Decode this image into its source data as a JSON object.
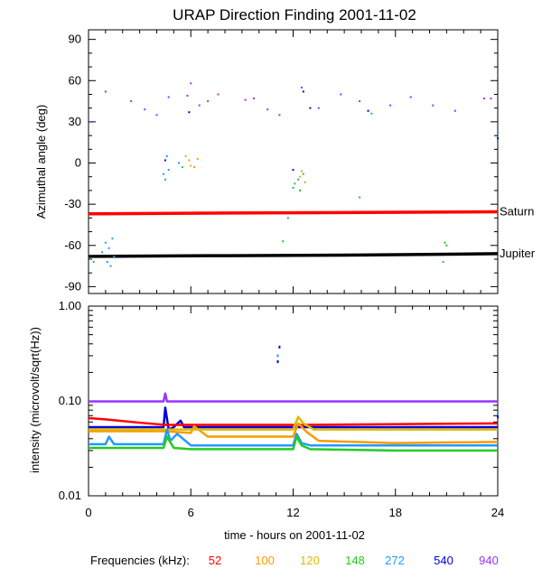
{
  "chart_data": [
    {
      "type": "scatter",
      "title": "URAP Direction Finding  2001-11-02",
      "ylabel": "Azimuthal angle (deg)",
      "xlim": [
        0,
        24
      ],
      "ylim": [
        -95,
        97
      ],
      "yticks": [
        90,
        60,
        30,
        0,
        -30,
        -60,
        -90
      ],
      "lines": [
        {
          "name": "Saturn",
          "color": "#ff0000",
          "points": [
            [
              0,
              -37
            ],
            [
              7,
              -36.5
            ],
            [
              16,
              -36
            ],
            [
              24,
              -35.5
            ]
          ]
        },
        {
          "name": "Jupiter",
          "color": "#000000",
          "points": [
            [
              0,
              -68
            ],
            [
              7,
              -67.5
            ],
            [
              16,
              -67
            ],
            [
              24,
              -66
            ]
          ]
        }
      ],
      "points": [
        {
          "f": 940,
          "x": 0.2,
          "y": 30
        },
        {
          "f": 940,
          "x": 1.0,
          "y": 52
        },
        {
          "f": 940,
          "x": 2.5,
          "y": 45
        },
        {
          "f": 940,
          "x": 3.3,
          "y": 39
        },
        {
          "f": 940,
          "x": 4.0,
          "y": 35
        },
        {
          "f": 940,
          "x": 4.7,
          "y": 48
        },
        {
          "f": 940,
          "x": 5.8,
          "y": 49
        },
        {
          "f": 940,
          "x": 6.0,
          "y": 58
        },
        {
          "f": 940,
          "x": 6.5,
          "y": 42
        },
        {
          "f": 940,
          "x": 7.0,
          "y": 45
        },
        {
          "f": 940,
          "x": 7.6,
          "y": 50
        },
        {
          "f": 940,
          "x": 9.2,
          "y": 46
        },
        {
          "f": 940,
          "x": 9.7,
          "y": 47
        },
        {
          "f": 940,
          "x": 10.5,
          "y": 39
        },
        {
          "f": 940,
          "x": 11.2,
          "y": 35
        },
        {
          "f": 940,
          "x": 12.5,
          "y": 55
        },
        {
          "f": 940,
          "x": 13.5,
          "y": 40
        },
        {
          "f": 940,
          "x": 14.8,
          "y": 50
        },
        {
          "f": 940,
          "x": 15.9,
          "y": 45
        },
        {
          "f": 940,
          "x": 17.7,
          "y": 42
        },
        {
          "f": 940,
          "x": 18.9,
          "y": 48
        },
        {
          "f": 940,
          "x": 20.2,
          "y": 42
        },
        {
          "f": 940,
          "x": 21.5,
          "y": 38
        },
        {
          "f": 940,
          "x": 23.2,
          "y": 47
        },
        {
          "f": 940,
          "x": 23.6,
          "y": 47
        },
        {
          "f": 540,
          "x": 4.5,
          "y": 2
        },
        {
          "f": 540,
          "x": 5.9,
          "y": 37
        },
        {
          "f": 540,
          "x": 12.0,
          "y": -5
        },
        {
          "f": 540,
          "x": 12.6,
          "y": 52
        },
        {
          "f": 540,
          "x": 13.0,
          "y": 40
        },
        {
          "f": 540,
          "x": 16.4,
          "y": 38
        },
        {
          "f": 540,
          "x": 24.0,
          "y": 18
        },
        {
          "f": 272,
          "x": 0.8,
          "y": -65
        },
        {
          "f": 272,
          "x": 1.0,
          "y": -58
        },
        {
          "f": 272,
          "x": 1.1,
          "y": -72
        },
        {
          "f": 272,
          "x": 1.2,
          "y": -62
        },
        {
          "f": 272,
          "x": 1.3,
          "y": -75
        },
        {
          "f": 272,
          "x": 1.4,
          "y": -55
        },
        {
          "f": 272,
          "x": 1.5,
          "y": -68
        },
        {
          "f": 272,
          "x": 4.4,
          "y": -8
        },
        {
          "f": 272,
          "x": 4.5,
          "y": -12
        },
        {
          "f": 272,
          "x": 4.6,
          "y": 5
        },
        {
          "f": 272,
          "x": 4.7,
          "y": -5
        },
        {
          "f": 272,
          "x": 5.3,
          "y": 0
        },
        {
          "f": 272,
          "x": 11.7,
          "y": -40
        },
        {
          "f": 272,
          "x": 12.0,
          "y": -18
        },
        {
          "f": 272,
          "x": 12.3,
          "y": -12
        },
        {
          "f": 272,
          "x": 15.9,
          "y": -25
        },
        {
          "f": 272,
          "x": 16.6,
          "y": 36
        },
        {
          "f": 272,
          "x": 24.0,
          "y": 22
        },
        {
          "f": 148,
          "x": 0.3,
          "y": -72
        },
        {
          "f": 148,
          "x": 5.5,
          "y": -3
        },
        {
          "f": 148,
          "x": 11.4,
          "y": -57
        },
        {
          "f": 148,
          "x": 12.1,
          "y": -15
        },
        {
          "f": 148,
          "x": 12.4,
          "y": -20
        },
        {
          "f": 148,
          "x": 12.6,
          "y": -8
        },
        {
          "f": 148,
          "x": 20.9,
          "y": -58
        },
        {
          "f": 148,
          "x": 21.0,
          "y": -60
        },
        {
          "f": 148,
          "x": 20.8,
          "y": -72
        },
        {
          "f": 120,
          "x": 5.7,
          "y": 5
        },
        {
          "f": 120,
          "x": 6.0,
          "y": -2
        },
        {
          "f": 120,
          "x": 12.4,
          "y": -10
        },
        {
          "f": 100,
          "x": 5.9,
          "y": 2
        },
        {
          "f": 100,
          "x": 6.2,
          "y": -3
        },
        {
          "f": 100,
          "x": 6.4,
          "y": 3
        },
        {
          "f": 100,
          "x": 12.5,
          "y": -6
        },
        {
          "f": 100,
          "x": 12.7,
          "y": -14
        }
      ]
    },
    {
      "type": "line",
      "ylabel": "intensity (microvolt/sqrt(Hz))",
      "xlabel": "time - hours on 2001-11-02",
      "xlim": [
        0,
        24
      ],
      "xticks": [
        0,
        6,
        12,
        18,
        24
      ],
      "yscale": "log",
      "ylim": [
        0.01,
        1.0
      ],
      "yticks": [
        "1.00",
        "0.10",
        "0.01"
      ],
      "series": [
        {
          "f": 940,
          "color": "#9933ff",
          "x": [
            0,
            4.4,
            4.5,
            4.6,
            24
          ],
          "y": [
            0.099,
            0.099,
            0.12,
            0.099,
            0.099
          ]
        },
        {
          "f": 540,
          "color": "#0000dd",
          "x": [
            0,
            4.4,
            4.5,
            4.7,
            5.0,
            5.4,
            5.6,
            6.0,
            24
          ],
          "y": [
            0.053,
            0.053,
            0.085,
            0.05,
            0.053,
            0.062,
            0.053,
            0.053,
            0.053
          ]
        },
        {
          "f": 52,
          "color": "#ff0000",
          "x": [
            0,
            1,
            3,
            4.5,
            12.5,
            24
          ],
          "y": [
            0.066,
            0.064,
            0.059,
            0.056,
            0.056,
            0.058
          ]
        },
        {
          "f": 100,
          "color": "#ff9900",
          "x": [
            0,
            4.4,
            6.0,
            6.2,
            7.0,
            12.0,
            12.3,
            12.8,
            13.5,
            18,
            24
          ],
          "y": [
            0.048,
            0.048,
            0.046,
            0.054,
            0.042,
            0.042,
            0.058,
            0.047,
            0.038,
            0.036,
            0.037
          ]
        },
        {
          "f": 120,
          "color": "#ddbb00",
          "x": [
            0,
            12.0,
            12.3,
            12.6,
            13.2,
            24
          ],
          "y": [
            0.05,
            0.05,
            0.068,
            0.058,
            0.05,
            0.05
          ]
        },
        {
          "f": 272,
          "color": "#2299ff",
          "x": [
            0,
            1.0,
            1.2,
            1.5,
            4.4,
            4.6,
            4.8,
            5.2,
            6.0,
            12.0,
            12.2,
            12.5,
            13.0,
            18,
            24
          ],
          "y": [
            0.035,
            0.035,
            0.042,
            0.035,
            0.035,
            0.05,
            0.038,
            0.045,
            0.034,
            0.034,
            0.045,
            0.036,
            0.034,
            0.034,
            0.034
          ]
        },
        {
          "f": 148,
          "color": "#22cc22",
          "x": [
            0,
            4.4,
            4.6,
            5.0,
            6.0,
            12.0,
            12.2,
            12.5,
            13.0,
            18,
            24
          ],
          "y": [
            0.032,
            0.032,
            0.042,
            0.032,
            0.031,
            0.031,
            0.042,
            0.034,
            0.031,
            0.03,
            0.03
          ]
        }
      ],
      "spikes": [
        {
          "f": 540,
          "x": 11.1,
          "y": 0.26
        },
        {
          "f": 272,
          "x": 11.1,
          "y": 0.3
        },
        {
          "f": 540,
          "x": 11.2,
          "y": 0.37
        },
        {
          "f": 272,
          "x": 24.0,
          "y": 0.075
        },
        {
          "f": 540,
          "x": 24.0,
          "y": 0.068
        }
      ]
    }
  ],
  "legend": {
    "title": "Frequencies (kHz):",
    "items": [
      {
        "label": "52",
        "color": "#ff0000"
      },
      {
        "label": "100",
        "color": "#ff9900"
      },
      {
        "label": "120",
        "color": "#ddbb00"
      },
      {
        "label": "148",
        "color": "#22cc22"
      },
      {
        "label": "272",
        "color": "#2299ff"
      },
      {
        "label": "540",
        "color": "#0000dd"
      },
      {
        "label": "940",
        "color": "#9933ff"
      }
    ]
  }
}
